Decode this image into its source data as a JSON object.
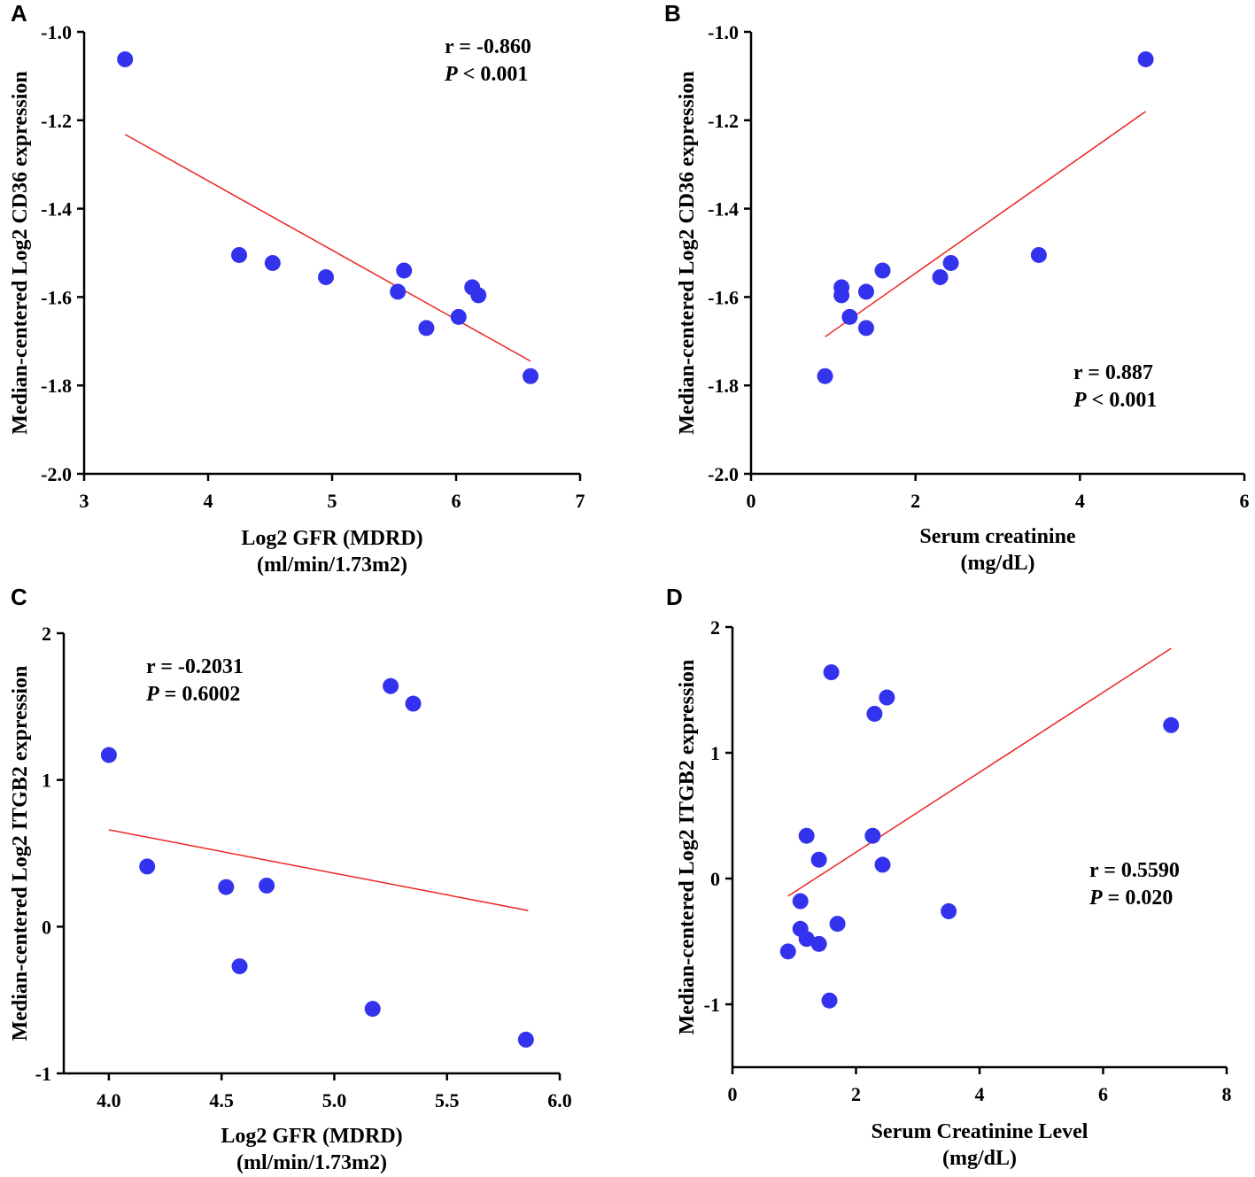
{
  "chart_data": [
    {
      "panel": "A",
      "type": "scatter",
      "xlabel": [
        "Log2 GFR (MDRD)",
        "(ml/min/1.73m2)"
      ],
      "ylabel": "Median-centered Log2 CD36 expression",
      "xlim": [
        3,
        7
      ],
      "ylim": [
        -2.0,
        -1.0
      ],
      "xticks": [
        3,
        4,
        5,
        6,
        7
      ],
      "xtick_labels": [
        "3",
        "4",
        "5",
        "6",
        "7"
      ],
      "yticks": [
        -2.0,
        -1.8,
        -1.6,
        -1.4,
        -1.2,
        -1.0
      ],
      "ytick_labels": [
        "-2.0",
        "-1.8",
        "-1.6",
        "-1.4",
        "-1.2",
        "-1.0"
      ],
      "points": [
        {
          "x": 3.33,
          "y": -1.062
        },
        {
          "x": 4.25,
          "y": -1.505
        },
        {
          "x": 4.52,
          "y": -1.523
        },
        {
          "x": 4.95,
          "y": -1.555
        },
        {
          "x": 5.53,
          "y": -1.588
        },
        {
          "x": 5.58,
          "y": -1.54
        },
        {
          "x": 5.76,
          "y": -1.67
        },
        {
          "x": 6.02,
          "y": -1.645
        },
        {
          "x": 6.13,
          "y": -1.578
        },
        {
          "x": 6.18,
          "y": -1.596
        },
        {
          "x": 6.6,
          "y": -1.779
        }
      ],
      "fit_line": {
        "x": [
          3.33,
          6.6
        ],
        "y": [
          -1.232,
          -1.745
        ]
      },
      "stats": {
        "r": "r = -0.860",
        "p_symbol": "P",
        "p_value": " < 0.001"
      },
      "stats_position": "top-right"
    },
    {
      "panel": "B",
      "type": "scatter",
      "xlabel": [
        "Serum creatinine",
        "(mg/dL)"
      ],
      "ylabel": "Median-centered Log2 CD36 expression",
      "xlim": [
        0,
        6
      ],
      "ylim": [
        -2.0,
        -1.0
      ],
      "xticks": [
        0,
        2,
        4,
        6
      ],
      "xtick_labels": [
        "0",
        "2",
        "4",
        "6"
      ],
      "yticks": [
        -2.0,
        -1.8,
        -1.6,
        -1.4,
        -1.2,
        -1.0
      ],
      "ytick_labels": [
        "-2.0",
        "-1.8",
        "-1.6",
        "-1.4",
        "-1.2",
        "-1.0"
      ],
      "points": [
        {
          "x": 0.9,
          "y": -1.779
        },
        {
          "x": 1.1,
          "y": -1.578
        },
        {
          "x": 1.1,
          "y": -1.596
        },
        {
          "x": 1.2,
          "y": -1.645
        },
        {
          "x": 1.4,
          "y": -1.588
        },
        {
          "x": 1.4,
          "y": -1.67
        },
        {
          "x": 1.6,
          "y": -1.54
        },
        {
          "x": 2.3,
          "y": -1.555
        },
        {
          "x": 2.43,
          "y": -1.523
        },
        {
          "x": 3.5,
          "y": -1.505
        },
        {
          "x": 4.8,
          "y": -1.062
        }
      ],
      "fit_line": {
        "x": [
          0.9,
          4.8
        ],
        "y": [
          -1.69,
          -1.18
        ]
      },
      "stats": {
        "r": "r = 0.887",
        "p_symbol": "P",
        "p_value": " < 0.001"
      },
      "stats_position": "bottom-right"
    },
    {
      "panel": "C",
      "type": "scatter",
      "xlabel": [
        "Log2 GFR (MDRD)",
        "(ml/min/1.73m2)"
      ],
      "ylabel": "Median-centered Log2 ITGB2 expression",
      "xlim": [
        3.8,
        6.0
      ],
      "ylim": [
        -1,
        2
      ],
      "xticks": [
        4.0,
        4.5,
        5.0,
        5.5,
        6.0
      ],
      "xtick_labels": [
        "4.0",
        "4.5",
        "5.0",
        "5.5",
        "6.0"
      ],
      "yticks": [
        -1,
        0,
        1,
        2
      ],
      "ytick_labels": [
        "-1",
        "0",
        "1",
        "2"
      ],
      "points": [
        {
          "x": 4.0,
          "y": 1.17
        },
        {
          "x": 4.17,
          "y": 0.41
        },
        {
          "x": 4.52,
          "y": 0.27
        },
        {
          "x": 4.58,
          "y": -0.27
        },
        {
          "x": 4.7,
          "y": 0.28
        },
        {
          "x": 5.17,
          "y": -0.56
        },
        {
          "x": 5.25,
          "y": 1.64
        },
        {
          "x": 5.35,
          "y": 1.52
        },
        {
          "x": 5.85,
          "y": -0.77
        }
      ],
      "fit_line": {
        "x": [
          4.0,
          5.86
        ],
        "y": [
          0.66,
          0.11
        ]
      },
      "stats": {
        "r": "r = -0.2031",
        "p_symbol": "P",
        "p_value": " = 0.6002"
      },
      "stats_position": "top-left"
    },
    {
      "panel": "D",
      "type": "scatter",
      "xlabel": [
        "Serum Creatinine Level",
        "(mg/dL)"
      ],
      "ylabel": "Median-centered Log2 ITGB2 expression",
      "xlim": [
        0,
        8
      ],
      "ylim": [
        -1.5,
        2
      ],
      "xticks": [
        0,
        2,
        4,
        6,
        8
      ],
      "xtick_labels": [
        "0",
        "2",
        "4",
        "6",
        "8"
      ],
      "yticks": [
        -1,
        0,
        1,
        2
      ],
      "ytick_labels": [
        "-1",
        "0",
        "1",
        "2"
      ],
      "points": [
        {
          "x": 0.9,
          "y": -0.58
        },
        {
          "x": 1.1,
          "y": -0.18
        },
        {
          "x": 1.1,
          "y": -0.4
        },
        {
          "x": 1.2,
          "y": 0.34
        },
        {
          "x": 1.2,
          "y": -0.48
        },
        {
          "x": 1.4,
          "y": 0.15
        },
        {
          "x": 1.4,
          "y": -0.52
        },
        {
          "x": 1.57,
          "y": -0.97
        },
        {
          "x": 1.6,
          "y": 1.64
        },
        {
          "x": 1.7,
          "y": -0.36
        },
        {
          "x": 2.27,
          "y": 0.34
        },
        {
          "x": 2.3,
          "y": 1.31
        },
        {
          "x": 2.43,
          "y": 0.11
        },
        {
          "x": 2.5,
          "y": 1.44
        },
        {
          "x": 3.5,
          "y": -0.26
        },
        {
          "x": 7.1,
          "y": 1.22
        }
      ],
      "fit_line": {
        "x": [
          0.9,
          7.1
        ],
        "y": [
          -0.14,
          1.83
        ]
      },
      "stats": {
        "r": "r = 0.5590",
        "p_symbol": "P",
        "p_value": " = 0.020"
      },
      "stats_position": "right"
    }
  ],
  "colors": {
    "point": "#3333ee",
    "fit_line": "#ee2222",
    "axis": "#000000"
  }
}
